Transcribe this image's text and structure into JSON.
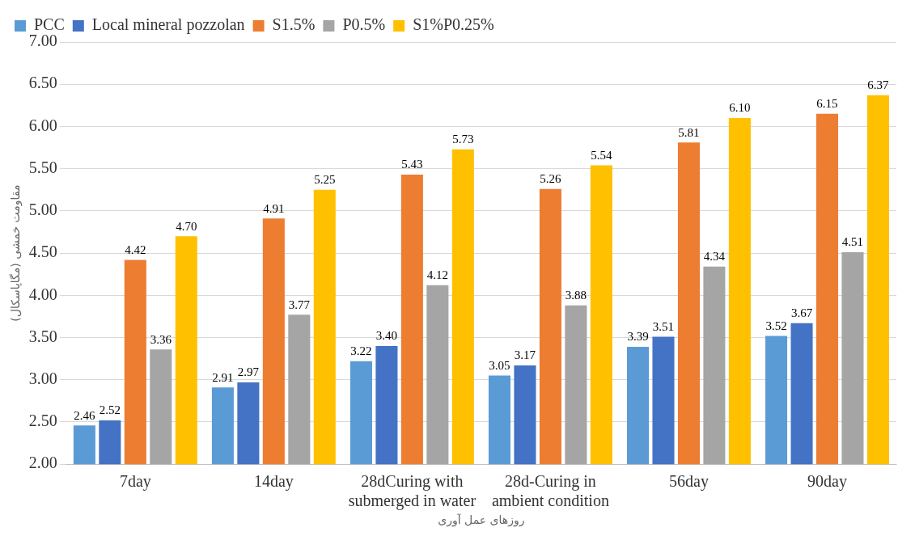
{
  "chart_data": {
    "type": "bar",
    "xlabel": "روزهای عمل آوری",
    "ylabel": "مقاومت خمشی (مگاپاسکال)",
    "categories": [
      "7day",
      "14day",
      "28dCuring with submerged in water",
      "28d-Curing in ambient condition",
      "56day",
      "90day"
    ],
    "series": [
      {
        "name": "PCC",
        "color": "#5b9bd5",
        "values": [
          2.46,
          2.91,
          3.22,
          3.05,
          3.39,
          3.52
        ],
        "value_labels": [
          "2.46",
          "2.91",
          "3.22",
          "3.05",
          "3.39",
          "3.52"
        ]
      },
      {
        "name": "Local mineral pozzolan",
        "color": "#4472c4",
        "values": [
          2.52,
          2.97,
          3.4,
          3.17,
          3.51,
          3.67
        ],
        "value_labels": [
          "2.52",
          "2.97",
          "3.40",
          "3.17",
          "3.51",
          "3.67"
        ]
      },
      {
        "name": "S1.5%",
        "color": "#ed7d31",
        "values": [
          4.42,
          4.91,
          5.43,
          5.26,
          5.81,
          6.15
        ],
        "value_labels": [
          "4.42",
          "4.91",
          "5.43",
          "5.26",
          "5.81",
          "6.15"
        ]
      },
      {
        "name": "P0.5%",
        "color": "#a5a5a5",
        "values": [
          3.36,
          3.77,
          4.12,
          3.88,
          4.34,
          4.51
        ],
        "value_labels": [
          "3.36",
          "3.77",
          "4.12",
          "3.88",
          "4.34",
          "4.51"
        ]
      },
      {
        "name": "S1%P0.25%",
        "color": "#ffc000",
        "values": [
          4.7,
          5.25,
          5.73,
          5.54,
          6.1,
          6.37
        ],
        "value_labels": [
          "4.70",
          "5.25",
          "5.73",
          "5.54",
          "6.10",
          "6.37"
        ]
      }
    ],
    "ylim": [
      2,
      7
    ],
    "yticks": [
      {
        "value": 2,
        "label": "2.00"
      },
      {
        "value": 2.5,
        "label": "2.50"
      },
      {
        "value": 3,
        "label": "3.00"
      },
      {
        "value": 3.5,
        "label": "3.50"
      },
      {
        "value": 4,
        "label": "4.00"
      },
      {
        "value": 4.5,
        "label": "4.50"
      },
      {
        "value": 5,
        "label": "5.00"
      },
      {
        "value": 5.5,
        "label": "5.50"
      },
      {
        "value": 6,
        "label": "6.00"
      },
      {
        "value": 6.5,
        "label": "6.50"
      },
      {
        "value": 7,
        "label": "7.00"
      }
    ],
    "grid": "y",
    "legend": "top"
  }
}
